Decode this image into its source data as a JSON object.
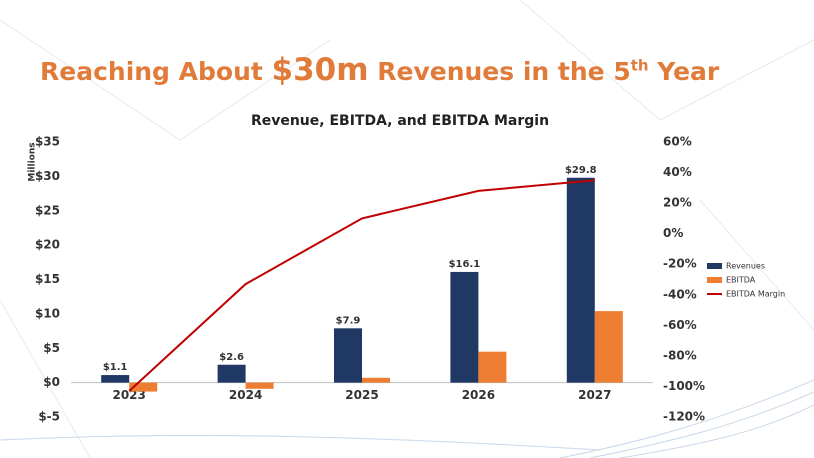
{
  "slide": {
    "title_parts": [
      "Reaching About ",
      "$30m",
      " Revenues in the 5",
      "th",
      " Year"
    ]
  },
  "chart_data": {
    "type": "bar-line",
    "title": "Revenue, EBITDA, and EBITDA Margin",
    "y_label": "Millions",
    "categories": [
      "2023",
      "2024",
      "2025",
      "2026",
      "2027"
    ],
    "series": [
      {
        "name": "Revenues",
        "color": "#1f3864",
        "values": [
          1.1,
          2.6,
          7.9,
          16.1,
          29.8
        ],
        "value_labels": [
          "$1.1",
          "$2.6",
          "$7.9",
          "$16.1",
          "$29.8"
        ]
      },
      {
        "name": "EBITDA",
        "color": "#ed7d31",
        "values": [
          -1.3,
          -0.9,
          0.7,
          4.5,
          10.4
        ]
      },
      {
        "name": "EBITDA Margin",
        "color": "#c00000",
        "axis": "y2",
        "values": [
          -103,
          -33,
          10,
          28,
          35
        ]
      }
    ],
    "ylim": [
      -5,
      35
    ],
    "yticks": [
      {
        "value": -5,
        "label": "$-5"
      },
      {
        "value": 0,
        "label": "$0"
      },
      {
        "value": 5,
        "label": "$5"
      },
      {
        "value": 10,
        "label": "$10"
      },
      {
        "value": 15,
        "label": "$15"
      },
      {
        "value": 20,
        "label": "$20"
      },
      {
        "value": 25,
        "label": "$25"
      },
      {
        "value": 30,
        "label": "$30"
      },
      {
        "value": 35,
        "label": "$35"
      }
    ],
    "y2lim": [
      -120,
      60
    ],
    "y2ticks": [
      {
        "value": -120,
        "label": "-120%"
      },
      {
        "value": -100,
        "label": "-100%"
      },
      {
        "value": -80,
        "label": "-80%"
      },
      {
        "value": -60,
        "label": "-60%"
      },
      {
        "value": -40,
        "label": "-40%"
      },
      {
        "value": -20,
        "label": "-20%"
      },
      {
        "value": 0,
        "label": "0%"
      },
      {
        "value": 20,
        "label": "20%"
      },
      {
        "value": 40,
        "label": "40%"
      },
      {
        "value": 60,
        "label": "60%"
      }
    ],
    "legend": "right"
  }
}
